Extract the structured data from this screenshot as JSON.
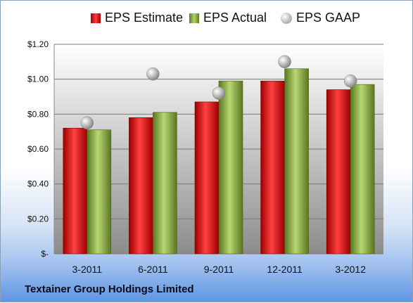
{
  "chart_data": {
    "type": "bar",
    "categories": [
      "3-2011",
      "6-2011",
      "9-2011",
      "12-2011",
      "3-2012"
    ],
    "series": [
      {
        "name": "EPS Estimate",
        "values": [
          0.72,
          0.78,
          0.87,
          0.99,
          0.94
        ],
        "color": "#d42020",
        "mark": "bar"
      },
      {
        "name": "EPS Actual",
        "values": [
          0.71,
          0.81,
          0.99,
          1.06,
          0.97
        ],
        "color": "#8fb040",
        "mark": "bar"
      },
      {
        "name": "EPS GAAP",
        "values": [
          0.75,
          1.03,
          0.92,
          1.1,
          0.99
        ],
        "color": "#aaaaaa",
        "mark": "point"
      }
    ],
    "yticks": [
      "$-",
      "$0.20",
      "$0.40",
      "$0.60",
      "$0.80",
      "$1.00",
      "$1.20"
    ],
    "ylim": [
      0,
      1.2
    ],
    "grid": true,
    "legend": "top"
  },
  "footer": {
    "company": "Textainer Group Holdings Limited"
  }
}
